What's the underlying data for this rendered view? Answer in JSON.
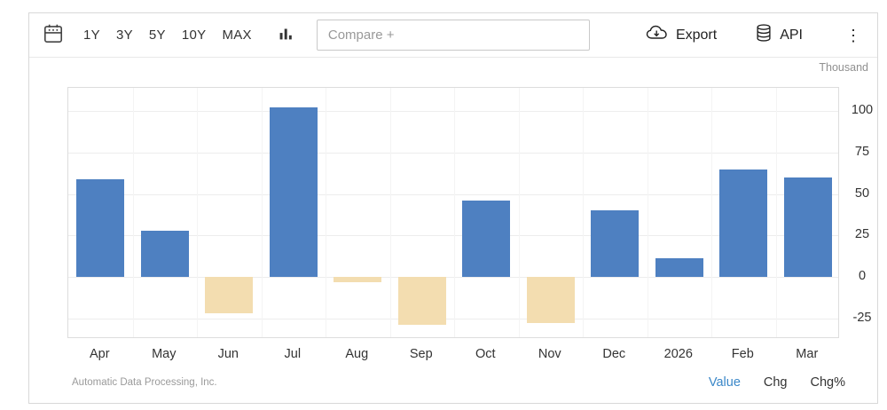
{
  "toolbar": {
    "range_buttons": [
      "1Y",
      "3Y",
      "5Y",
      "10Y",
      "MAX"
    ],
    "compare_placeholder": "Compare +",
    "export_label": "Export",
    "api_label": "API",
    "menu_glyph": "⋮"
  },
  "chart": {
    "unit_label": "Thousand"
  },
  "chart_data": {
    "type": "bar",
    "title": "",
    "xlabel": "",
    "ylabel": "Thousand",
    "categories": [
      "Apr",
      "May",
      "Jun",
      "Jul",
      "Aug",
      "Sep",
      "Oct",
      "Nov",
      "Dec",
      "2026",
      "Feb",
      "Mar"
    ],
    "values": [
      59,
      28,
      -22,
      102,
      -3,
      -29,
      46,
      -28,
      40,
      11,
      65,
      60
    ],
    "yticks": [
      100,
      75,
      50,
      25,
      0,
      -25
    ],
    "ylim": [
      -37.5,
      114
    ],
    "grid": true,
    "legend_position": "none",
    "colors": {
      "positive": "#4e80c1",
      "negative": "#f3ddb0"
    }
  },
  "footer": {
    "source": "Automatic Data Processing, Inc.",
    "modes": [
      {
        "label": "Value",
        "active": true
      },
      {
        "label": "Chg",
        "active": false
      },
      {
        "label": "Chg%",
        "active": false
      }
    ]
  }
}
